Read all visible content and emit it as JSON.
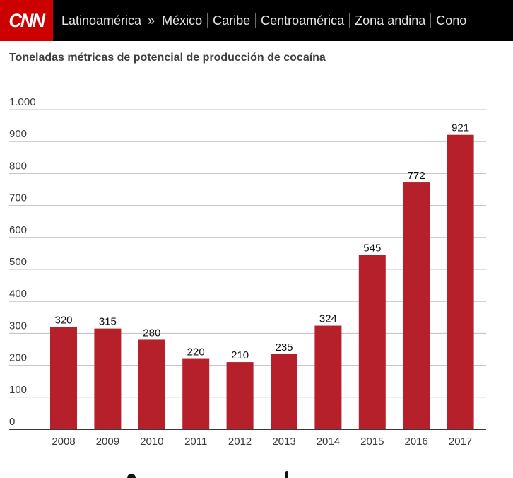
{
  "header": {
    "logo_text": "CNN",
    "nav": {
      "latinoamerica": "Latinoamérica",
      "arrow": "»",
      "mexico": "México",
      "caribe": "Caribe",
      "centroamerica": "Centroamérica",
      "zona_andina": "Zona andina",
      "cono": "Cono"
    },
    "colors": {
      "background": "#000000",
      "logo": "#cc0000"
    }
  },
  "chart_data": {
    "type": "bar",
    "title": "Toneladas métricas de potencial de producción de cocaína",
    "categories": [
      "2008",
      "2009",
      "2010",
      "2011",
      "2012",
      "2013",
      "2014",
      "2015",
      "2016",
      "2017"
    ],
    "values": [
      320,
      315,
      280,
      220,
      210,
      235,
      324,
      545,
      772,
      921
    ],
    "value_labels": [
      "320",
      "315",
      "280",
      "220",
      "210",
      "235",
      "324",
      "545",
      "772",
      "921"
    ],
    "xlabel": "",
    "ylabel": "",
    "ylim": [
      0,
      1000
    ],
    "yticks": [
      0,
      100,
      200,
      300,
      400,
      500,
      600,
      700,
      800,
      900,
      1000
    ],
    "ytick_labels": [
      "0",
      "100",
      "200",
      "300",
      "400",
      "500",
      "600",
      "700",
      "800",
      "900",
      "1.000"
    ],
    "grid": true,
    "bar_color": "#b5202a"
  }
}
